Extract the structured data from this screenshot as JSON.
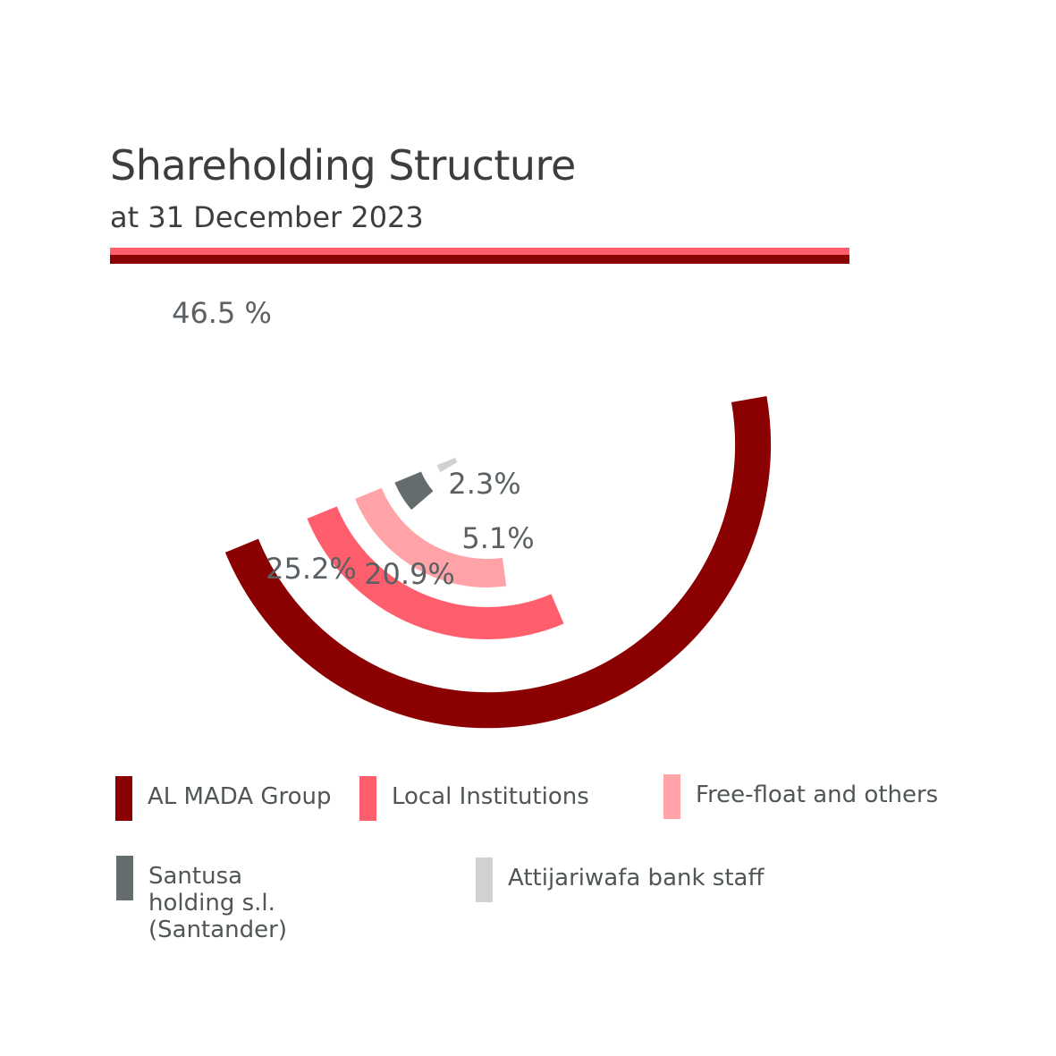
{
  "title": "Shareholding Structure",
  "subtitle": "at 31 December 2023",
  "chart_data": {
    "type": "pie",
    "series": [
      {
        "name": "AL MADA Group",
        "value": 46.5,
        "label": "46.5 %",
        "color": "#8b0000"
      },
      {
        "name": "Local Institutions",
        "value": 25.2,
        "label": "25.2%",
        "color": "#ff5f6d"
      },
      {
        "name": "Free-float and others",
        "value": 20.9,
        "label": "20.9%",
        "color": "#ffa3a8"
      },
      {
        "name": "Santusa holding s.l.\n(Santander)",
        "value": 5.1,
        "label": "5.1%",
        "color": "#646c6e"
      },
      {
        "name": "Attijariwafa bank staff",
        "value": 2.3,
        "label": "2.3%",
        "color": "#cfd1d2"
      }
    ],
    "legend": "bottom"
  }
}
